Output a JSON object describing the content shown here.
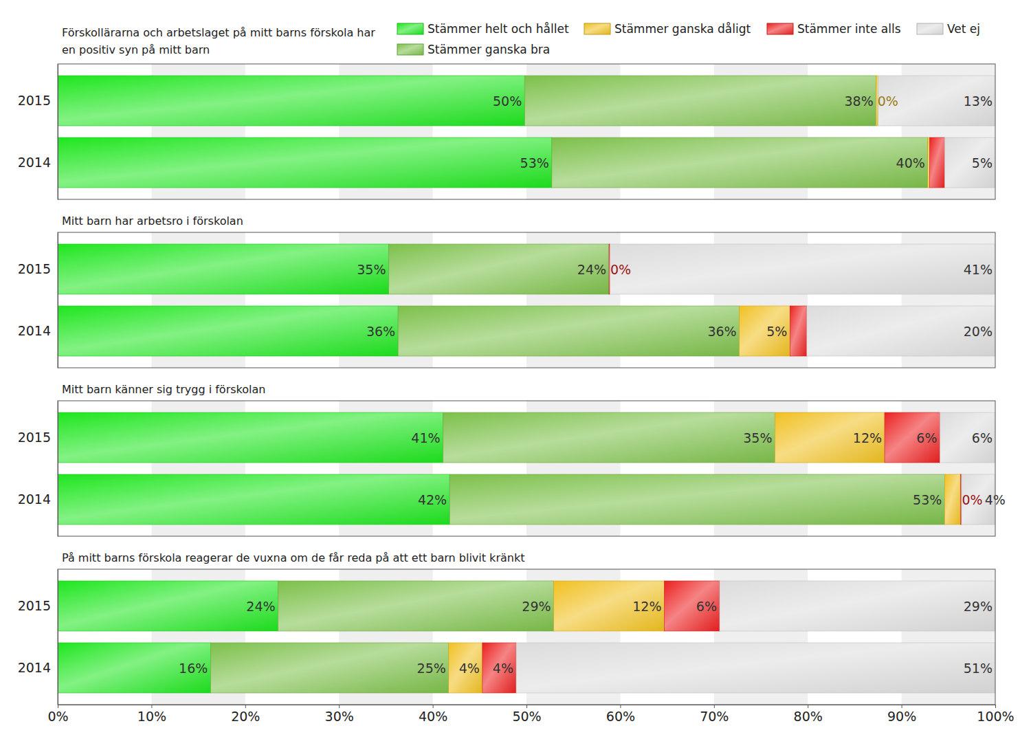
{
  "chart_data": [
    {
      "type": "bar",
      "orientation": "horizontal",
      "stacked": true,
      "data_labels": true,
      "grid": true,
      "legend": "top",
      "tick_labels": "y",
      "title": "Förskollärarna och arbetslaget på mitt barns förskola har en positiv syn på mitt barn",
      "categories": [
        "2015",
        "2014"
      ],
      "xlim": [
        0,
        100
      ],
      "xticks": [
        {
          "value": 0,
          "label": "0%"
        },
        {
          "value": 10,
          "label": "10%"
        },
        {
          "value": 20,
          "label": "20%"
        },
        {
          "value": 30,
          "label": "30%"
        },
        {
          "value": 40,
          "label": "40%"
        },
        {
          "value": 50,
          "label": "50%"
        },
        {
          "value": 60,
          "label": "60%"
        },
        {
          "value": 70,
          "label": "70%"
        },
        {
          "value": 80,
          "label": "80%"
        },
        {
          "value": 90,
          "label": "90%"
        },
        {
          "value": 100,
          "label": "100%"
        }
      ],
      "series": [
        {
          "name": "Stämmer helt och hållet",
          "color": "#1ee61e",
          "values": [
            49.8,
            52.7
          ],
          "value_labels": [
            "50%",
            "53%"
          ]
        },
        {
          "name": "Stämmer ganska bra",
          "color": "#7cc04a",
          "values": [
            37.5,
            40.1
          ],
          "value_labels": [
            "38%",
            "40%"
          ]
        },
        {
          "name": "Stämmer ganska dåligt",
          "color": "#f0c020",
          "values": [
            0.2,
            0.2
          ],
          "value_labels": [
            "0%",
            null
          ]
        },
        {
          "name": "Stämmer inte alls",
          "color": "#ec2020",
          "values": [
            0,
            1.6
          ],
          "value_labels": [
            null,
            null
          ]
        },
        {
          "name": "Vet ej",
          "color": "#dcdcdc",
          "values": [
            12.5,
            5.4
          ],
          "value_labels": [
            "13%",
            "5%"
          ]
        }
      ]
    },
    {
      "type": "bar",
      "orientation": "horizontal",
      "stacked": true,
      "data_labels": true,
      "grid": true,
      "tick_labels": "y",
      "title": "Mitt barn har arbetsro i förskolan",
      "categories": [
        "2015",
        "2014"
      ],
      "xlim": [
        0,
        100
      ],
      "xticks": [
        {
          "value": 0,
          "label": "0%"
        },
        {
          "value": 10,
          "label": "10%"
        },
        {
          "value": 20,
          "label": "20%"
        },
        {
          "value": 30,
          "label": "30%"
        },
        {
          "value": 40,
          "label": "40%"
        },
        {
          "value": 50,
          "label": "50%"
        },
        {
          "value": 60,
          "label": "60%"
        },
        {
          "value": 70,
          "label": "70%"
        },
        {
          "value": 80,
          "label": "80%"
        },
        {
          "value": 90,
          "label": "90%"
        },
        {
          "value": 100,
          "label": "100%"
        }
      ],
      "series": [
        {
          "values": [
            35.3,
            36.3
          ],
          "value_labels": [
            "35%",
            "36%"
          ]
        },
        {
          "values": [
            23.5,
            36.4
          ],
          "value_labels": [
            "24%",
            "36%"
          ]
        },
        {
          "values": [
            0,
            5.4
          ],
          "value_labels": [
            null,
            "5%"
          ]
        },
        {
          "values": [
            0.1,
            1.8
          ],
          "value_labels": [
            "0%",
            null
          ]
        },
        {
          "values": [
            41.1,
            20.1
          ],
          "value_labels": [
            "41%",
            "20%"
          ]
        }
      ]
    },
    {
      "type": "bar",
      "orientation": "horizontal",
      "stacked": true,
      "data_labels": true,
      "grid": true,
      "tick_labels": "y",
      "title": "Mitt barn känner sig trygg i förskolan",
      "categories": [
        "2015",
        "2014"
      ],
      "xlim": [
        0,
        100
      ],
      "xticks": [
        {
          "value": 0,
          "label": "0%"
        },
        {
          "value": 10,
          "label": "10%"
        },
        {
          "value": 20,
          "label": "20%"
        },
        {
          "value": 30,
          "label": "30%"
        },
        {
          "value": 40,
          "label": "40%"
        },
        {
          "value": 50,
          "label": "50%"
        },
        {
          "value": 60,
          "label": "60%"
        },
        {
          "value": 70,
          "label": "70%"
        },
        {
          "value": 80,
          "label": "80%"
        },
        {
          "value": 90,
          "label": "90%"
        },
        {
          "value": 100,
          "label": "100%"
        }
      ],
      "series": [
        {
          "values": [
            41.1,
            41.8
          ],
          "value_labels": [
            "41%",
            "42%"
          ]
        },
        {
          "values": [
            35.4,
            52.8
          ],
          "value_labels": [
            "35%",
            "53%"
          ]
        },
        {
          "values": [
            11.7,
            1.7
          ],
          "value_labels": [
            "12%",
            null
          ]
        },
        {
          "values": [
            5.9,
            0.1
          ],
          "value_labels": [
            "6%",
            "0%"
          ]
        },
        {
          "values": [
            5.9,
            3.6
          ],
          "value_labels": [
            "6%",
            "4%"
          ]
        }
      ]
    },
    {
      "type": "bar",
      "orientation": "horizontal",
      "stacked": true,
      "data_labels": true,
      "grid": true,
      "title": "På mitt barns förskola reagerar de vuxna om de får reda på att ett barn blivit kränkt",
      "categories": [
        "2015",
        "2014"
      ],
      "xlim": [
        0,
        100
      ],
      "xticks": [
        {
          "value": 0,
          "label": "0%"
        },
        {
          "value": 10,
          "label": "10%"
        },
        {
          "value": 20,
          "label": "20%"
        },
        {
          "value": 30,
          "label": "30%"
        },
        {
          "value": 40,
          "label": "40%"
        },
        {
          "value": 50,
          "label": "50%"
        },
        {
          "value": 60,
          "label": "60%"
        },
        {
          "value": 70,
          "label": "70%"
        },
        {
          "value": 80,
          "label": "80%"
        },
        {
          "value": 90,
          "label": "90%"
        },
        {
          "value": 100,
          "label": "100%"
        }
      ],
      "series": [
        {
          "values": [
            23.5,
            16.3
          ],
          "value_labels": [
            "24%",
            "16%"
          ]
        },
        {
          "values": [
            29.4,
            25.4
          ],
          "value_labels": [
            "29%",
            "25%"
          ]
        },
        {
          "values": [
            11.8,
            3.6
          ],
          "value_labels": [
            "12%",
            "4%"
          ]
        },
        {
          "values": [
            5.9,
            3.6
          ],
          "value_labels": [
            "6%",
            "4%"
          ]
        },
        {
          "values": [
            29.4,
            51.1
          ],
          "value_labels": [
            "29%",
            "51%"
          ]
        }
      ]
    }
  ]
}
